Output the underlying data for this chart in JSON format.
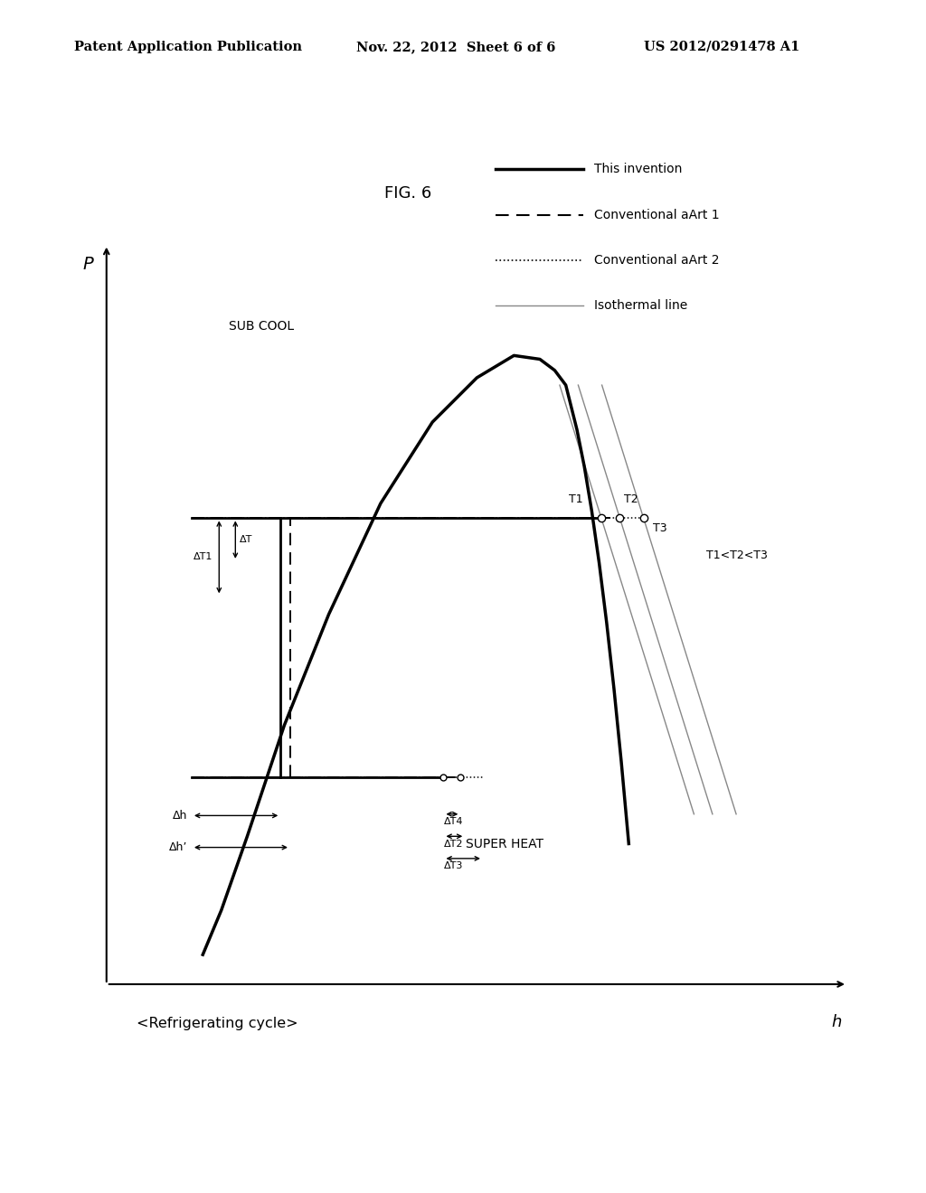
{
  "title": "FIG. 6",
  "header_left": "Patent Application Publication",
  "header_center": "Nov. 22, 2012  Sheet 6 of 6",
  "header_right": "US 2012/0291478 A1",
  "footer": "<Refrigerating cycle>",
  "xlabel": "h",
  "ylabel": "P",
  "bg_color": "#ffffff",
  "subcool_label": "SUB COOL",
  "superheat_label": "SUPER HEAT",
  "t1_label": "T1",
  "t2_label": "T2",
  "t3_label": "T3",
  "t1t2t3_label": "T1<T2<T3",
  "dh_label": "Δh",
  "dh2_label": "Δh’",
  "dt1_label": "ΔT1",
  "dt_label": "ΔT",
  "dt2_label": "ΔT2",
  "dt3_label": "ΔT3",
  "dt4_label": "ΔT4",
  "legend_items": [
    {
      "label": "This invention",
      "ls": "solid",
      "lw": 2.5,
      "color": "#000000"
    },
    {
      "label": "Conventional aArt 1",
      "ls": "dashed",
      "lw": 1.5,
      "color": "#000000"
    },
    {
      "label": "Conventional aArt 2",
      "ls": "dotted",
      "lw": 1.2,
      "color": "#000000"
    },
    {
      "label": "Isothermal line",
      "ls": "solid",
      "lw": 1.0,
      "color": "#888888"
    }
  ],
  "dome_x": [
    1.3,
    1.55,
    1.9,
    2.4,
    3.0,
    3.7,
    4.4,
    5.0,
    5.5,
    5.85,
    6.05,
    6.2,
    6.25,
    6.35,
    6.45,
    6.55,
    6.65,
    6.75,
    6.85,
    6.95,
    7.05
  ],
  "dome_y": [
    0.4,
    1.0,
    2.0,
    3.5,
    5.0,
    6.5,
    7.6,
    8.2,
    8.5,
    8.45,
    8.3,
    8.1,
    7.9,
    7.5,
    7.0,
    6.4,
    5.7,
    4.9,
    4.0,
    3.0,
    1.9
  ],
  "p_high": 6.3,
  "p_low": 2.8,
  "x_liq": 2.35,
  "x_vap": 6.68,
  "x_sub_left": 1.15,
  "T1_x": 6.68,
  "T1_y": 6.3,
  "T2_x": 6.93,
  "T2_y": 6.3,
  "T3_x": 7.25,
  "T3_y": 6.3,
  "x1_bot": 4.55,
  "x2_bot": 4.78,
  "x3_bot": 5.08,
  "iso_slope": -3.2,
  "xlim": [
    0,
    10
  ],
  "ylim": [
    0,
    10
  ]
}
